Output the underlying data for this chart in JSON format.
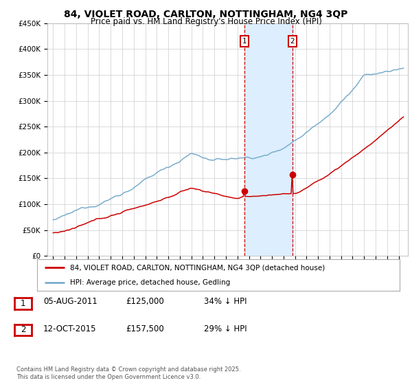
{
  "title": "84, VIOLET ROAD, CARLTON, NOTTINGHAM, NG4 3QP",
  "subtitle": "Price paid vs. HM Land Registry's House Price Index (HPI)",
  "ylim": [
    0,
    450000
  ],
  "yticks": [
    0,
    50000,
    100000,
    150000,
    200000,
    250000,
    300000,
    350000,
    400000,
    450000
  ],
  "ytick_labels": [
    "£0",
    "£50K",
    "£100K",
    "£150K",
    "£200K",
    "£250K",
    "£300K",
    "£350K",
    "£400K",
    "£450K"
  ],
  "legend_line1": "84, VIOLET ROAD, CARLTON, NOTTINGHAM, NG4 3QP (detached house)",
  "legend_line2": "HPI: Average price, detached house, Gedling",
  "transaction1_date": "05-AUG-2011",
  "transaction1_price": "£125,000",
  "transaction1_hpi": "34% ↓ HPI",
  "transaction2_date": "12-OCT-2015",
  "transaction2_price": "£157,500",
  "transaction2_hpi": "29% ↓ HPI",
  "footnote_line1": "Contains HM Land Registry data © Crown copyright and database right 2025.",
  "footnote_line2": "This data is licensed under the Open Government Licence v3.0.",
  "vline1_year": 2011.6,
  "vline2_year": 2015.78,
  "transaction1_price_val": 125000,
  "transaction2_price_val": 157500,
  "property_color": "#cc0000",
  "hpi_color": "#7aadcc",
  "shade_color": "#ddeeff",
  "background_color": "#ffffff",
  "grid_color": "#cccccc",
  "xlim_left": 1994.5,
  "xlim_right": 2025.8
}
